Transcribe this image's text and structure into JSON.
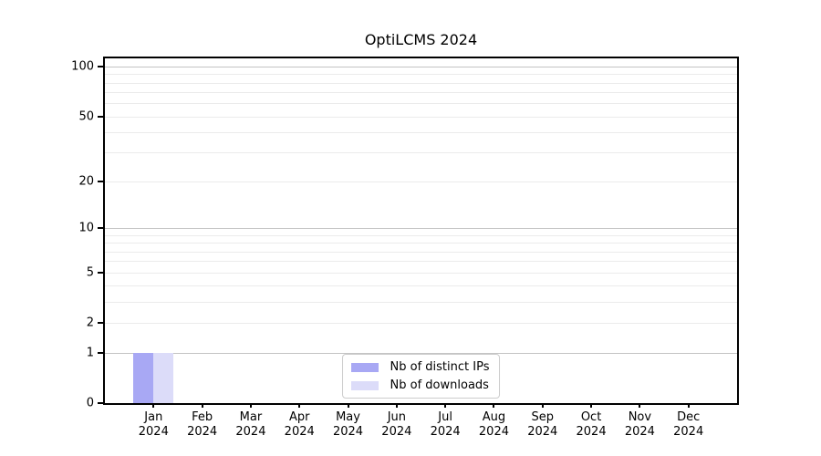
{
  "title": "OptiLCMS 2024",
  "chart_data": {
    "type": "bar",
    "title": "OptiLCMS 2024",
    "categories": [
      {
        "month": "Jan",
        "year": "2024"
      },
      {
        "month": "Feb",
        "year": "2024"
      },
      {
        "month": "Mar",
        "year": "2024"
      },
      {
        "month": "Apr",
        "year": "2024"
      },
      {
        "month": "May",
        "year": "2024"
      },
      {
        "month": "Jun",
        "year": "2024"
      },
      {
        "month": "Jul",
        "year": "2024"
      },
      {
        "month": "Aug",
        "year": "2024"
      },
      {
        "month": "Sep",
        "year": "2024"
      },
      {
        "month": "Oct",
        "year": "2024"
      },
      {
        "month": "Nov",
        "year": "2024"
      },
      {
        "month": "Dec",
        "year": "2024"
      }
    ],
    "series": [
      {
        "name": "Nb of distinct IPs",
        "color": "#a8a8f4",
        "values": [
          1,
          0,
          0,
          0,
          0,
          0,
          0,
          0,
          0,
          0,
          0,
          0
        ]
      },
      {
        "name": "Nb of downloads",
        "color": "#dcdcf9",
        "values": [
          1,
          0,
          0,
          0,
          0,
          0,
          0,
          0,
          0,
          0,
          0,
          0
        ]
      }
    ],
    "y_scale": "log10(1+y)",
    "ylim": [
      0,
      112
    ],
    "y_ticks": [
      0,
      1,
      2,
      5,
      10,
      20,
      50,
      100
    ],
    "y_major_gridlines": [
      1,
      10,
      100
    ],
    "y_minor_gridlines": [
      2,
      3,
      4,
      5,
      6,
      7,
      8,
      9,
      20,
      30,
      40,
      50,
      60,
      70,
      80,
      90
    ],
    "xlabel": "",
    "ylabel": "",
    "grid": true,
    "legend_position": "lower center"
  }
}
